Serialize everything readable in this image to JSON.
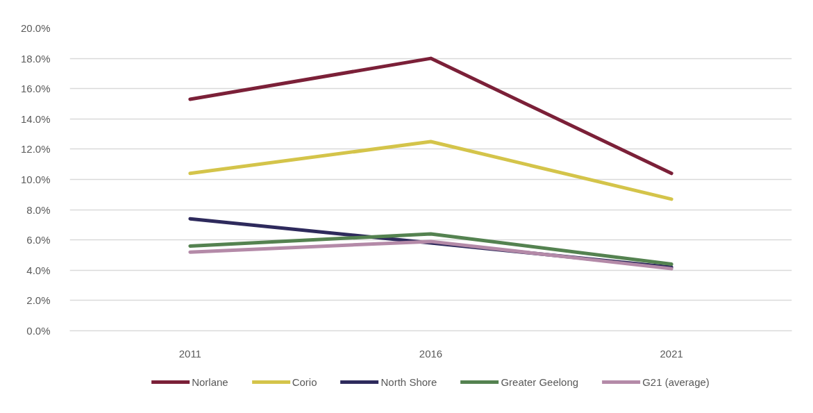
{
  "chart_data": {
    "type": "line",
    "categories": [
      "2011",
      "2016",
      "2021"
    ],
    "series": [
      {
        "name": "Norlane",
        "color": "#7b2038",
        "values": [
          15.3,
          18.0,
          10.4
        ]
      },
      {
        "name": "Corio",
        "color": "#d4c44a",
        "values": [
          10.4,
          12.5,
          8.7
        ]
      },
      {
        "name": "North Shore",
        "color": "#2e2a5c",
        "values": [
          7.4,
          5.8,
          4.2
        ]
      },
      {
        "name": "Greater Geelong",
        "color": "#548250",
        "values": [
          5.6,
          6.4,
          4.4
        ]
      },
      {
        "name": "G21 (average)",
        "color": "#b48aa8",
        "values": [
          5.2,
          5.9,
          4.1
        ]
      }
    ],
    "ylim": [
      0,
      20
    ],
    "yticks": [
      {
        "value": 0,
        "label": "0.0%"
      },
      {
        "value": 2,
        "label": "2.0%"
      },
      {
        "value": 4,
        "label": "4.0%"
      },
      {
        "value": 6,
        "label": "6.0%"
      },
      {
        "value": 8,
        "label": "8.0%"
      },
      {
        "value": 10,
        "label": "10.0%"
      },
      {
        "value": 12,
        "label": "12.0%"
      },
      {
        "value": 14,
        "label": "14.0%"
      },
      {
        "value": 16,
        "label": "16.0%"
      },
      {
        "value": 18,
        "label": "18.0%"
      },
      {
        "value": 20,
        "label": "20.0%"
      }
    ],
    "grid": "y",
    "legend": "bottom"
  }
}
